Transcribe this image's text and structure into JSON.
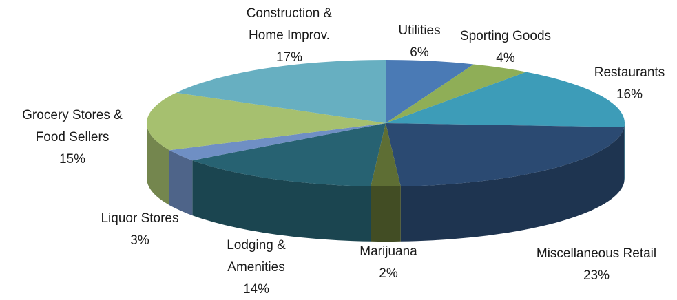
{
  "chart_data": {
    "type": "pie",
    "categories": [
      "Utilities",
      "Sporting Goods",
      "Restaurants",
      "Miscellaneous Retail",
      "Marijuana",
      "Lodging & Amenities",
      "Liquor Stores",
      "Grocery Stores & Food Sellers",
      "Construction & Home Improv."
    ],
    "values": [
      6,
      4,
      16,
      23,
      2,
      14,
      3,
      15,
      17
    ],
    "value_labels": [
      "6%",
      "4%",
      "16%",
      "23%",
      "2%",
      "14%",
      "3%",
      "15%",
      "17%"
    ],
    "colors": [
      "#4a7ab5",
      "#8fae57",
      "#3d9cb8",
      "#2b4a72",
      "#5e6e34",
      "#276272",
      "#6f8fc4",
      "#a6c06f",
      "#67afc1"
    ]
  }
}
